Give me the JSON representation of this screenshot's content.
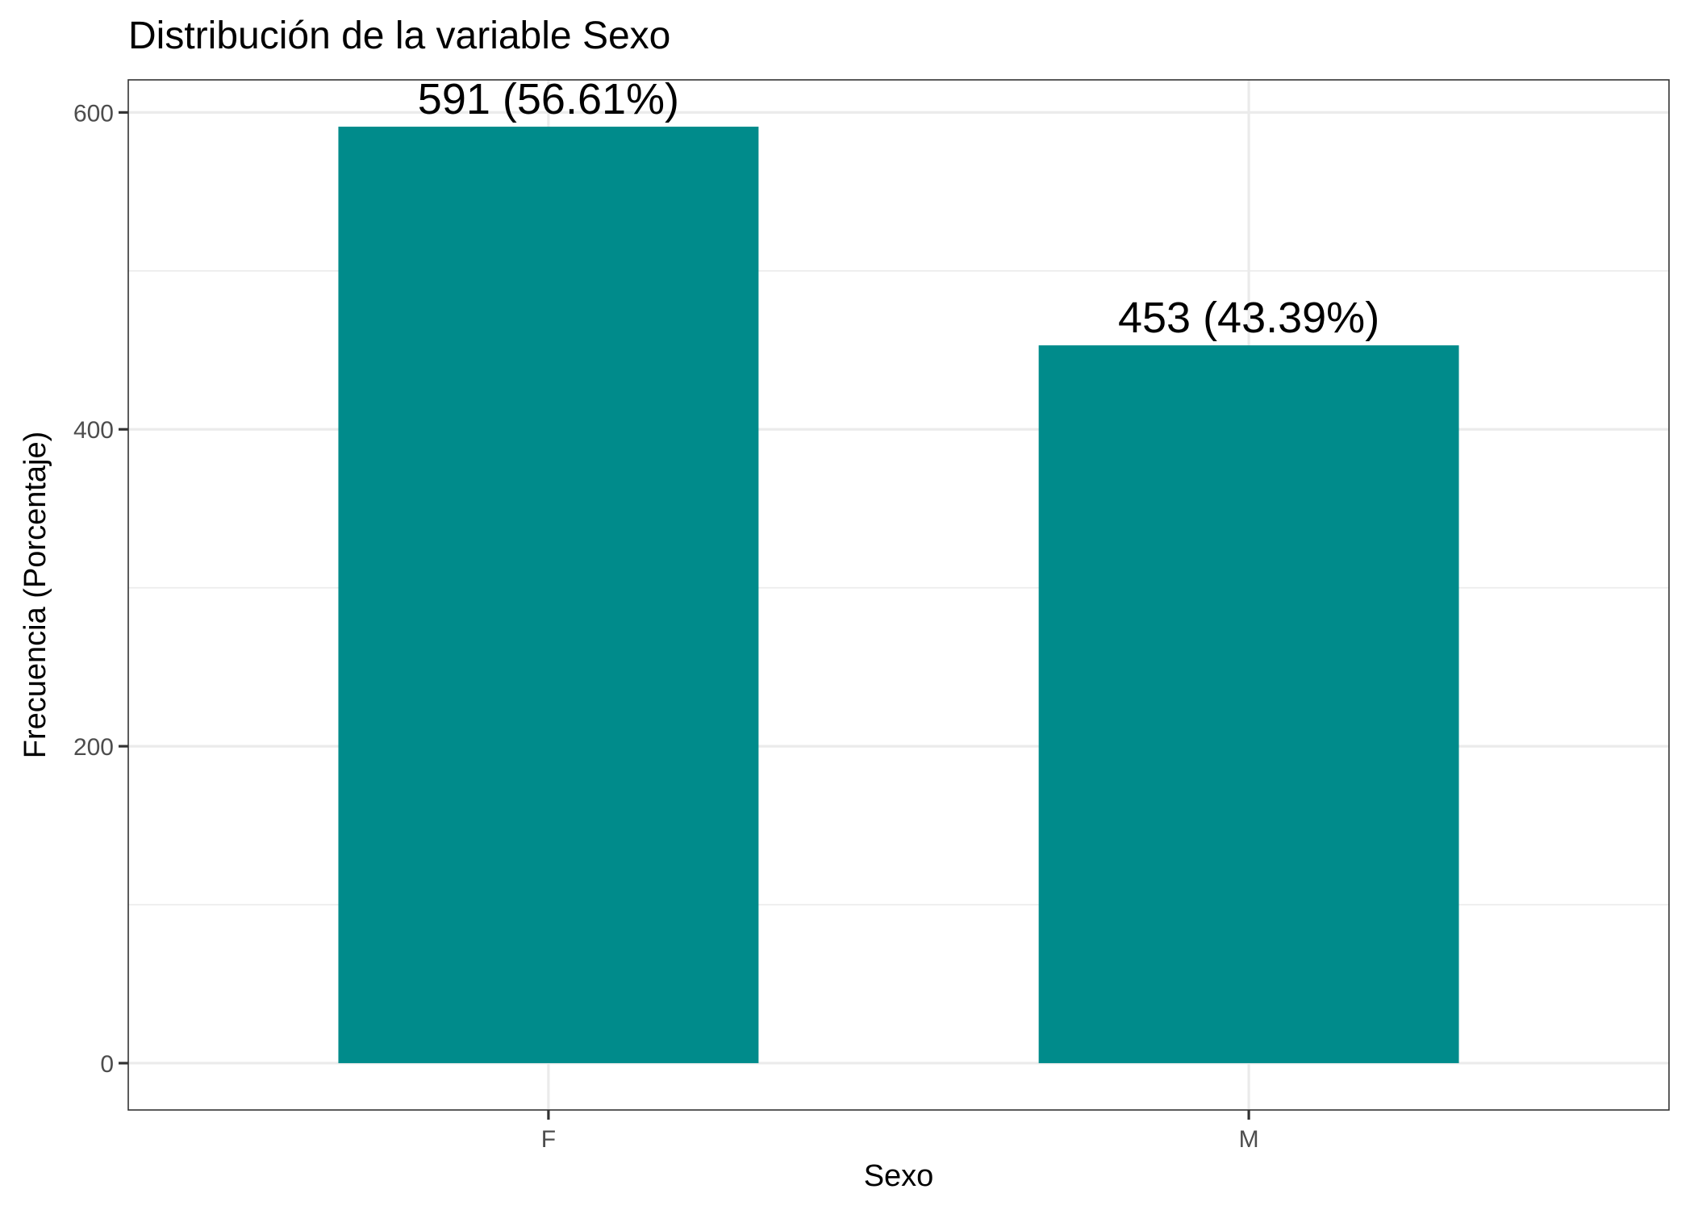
{
  "chart_data": {
    "type": "bar",
    "title": "Distribución de la variable Sexo",
    "xlabel": "Sexo",
    "ylabel": "Frecuencia (Porcentaje)",
    "categories": [
      "F",
      "M"
    ],
    "values": [
      591,
      453
    ],
    "data_labels": [
      "591 (56.61%)",
      "453 (43.39%)"
    ],
    "bar_color": "#008B8B",
    "ylim": [
      -29.55,
      620.55
    ],
    "yticks": [
      0,
      200,
      400,
      600
    ],
    "grid": true,
    "legend": "none"
  }
}
